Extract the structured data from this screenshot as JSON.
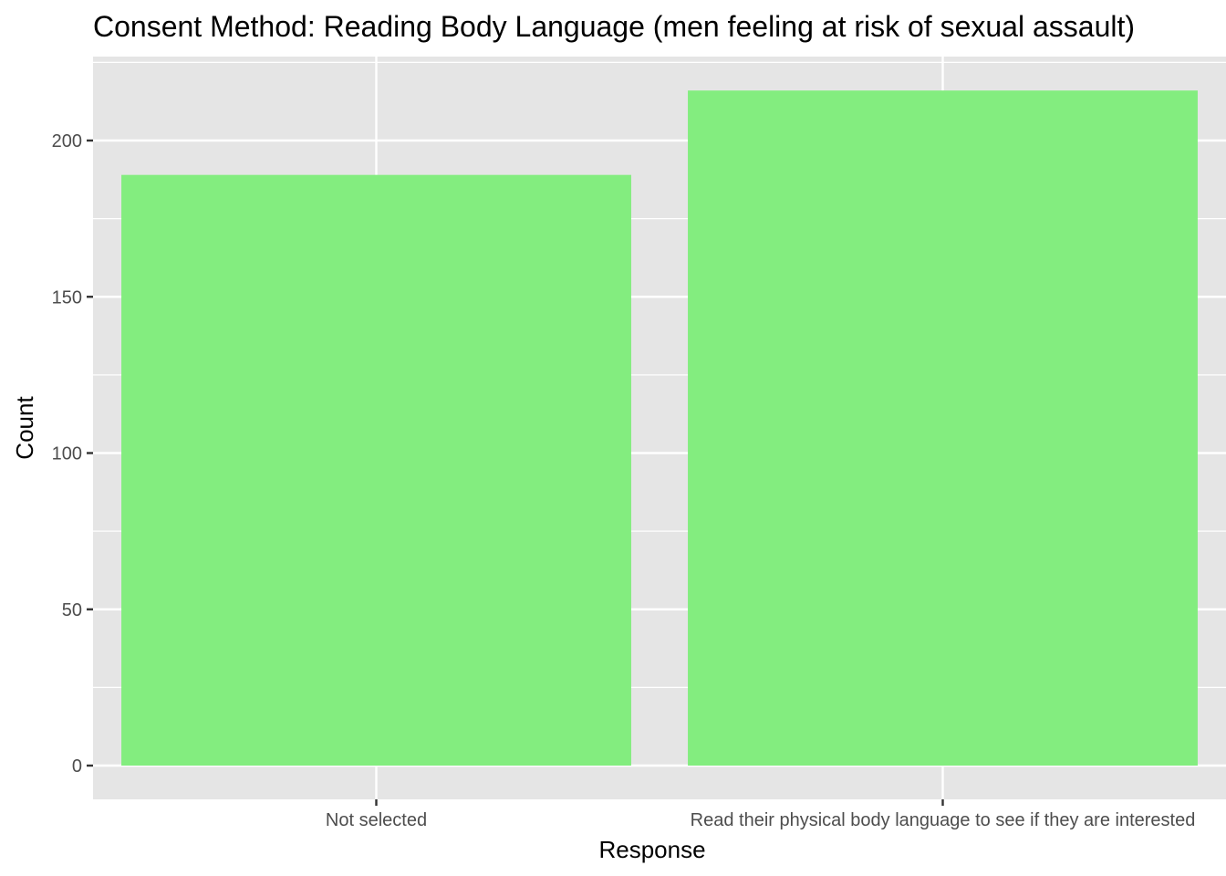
{
  "chart_data": {
    "type": "bar",
    "title": "Consent Method: Reading Body Language (men feeling at risk of sexual assault)",
    "xlabel": "Response",
    "ylabel": "Count",
    "categories": [
      "Not selected",
      "Read their physical body language to see if they are interested"
    ],
    "values": [
      189,
      216
    ],
    "ylim": [
      0,
      225
    ],
    "yticks": [
      0,
      50,
      100,
      150,
      200
    ],
    "grid": true,
    "bar_color": "#83ED7F",
    "panel_background": "#E5E5E5",
    "gridline_color": "#FFFFFF"
  }
}
